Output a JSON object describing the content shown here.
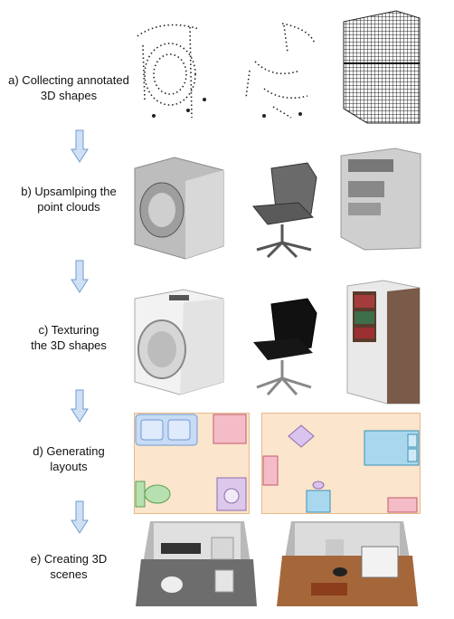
{
  "steps": [
    {
      "line1": "a) Collecting annotated",
      "line2": "3D shapes"
    },
    {
      "line1": "b) Upsamlping the",
      "line2": "point clouds"
    },
    {
      "line1": "c) Texturing",
      "line2": "the 3D shapes"
    },
    {
      "line1": "d)  Generating",
      "line2": "layouts"
    },
    {
      "line1": "e)  Creating 3D",
      "line2": "scenes"
    }
  ],
  "colors": {
    "arrow_fill": "#cfe0f5",
    "arrow_stroke": "#6f9bd1",
    "layout_bg": "#fbe5cc",
    "layout_border": "#e6b98e",
    "sink": "#c8dbf5",
    "bed": "#a9d8ee",
    "cabinet": "#f4bcc6",
    "toilet": "#b7e0b0",
    "washer": "#dcc8ea",
    "chair": "#d9c4ee"
  }
}
